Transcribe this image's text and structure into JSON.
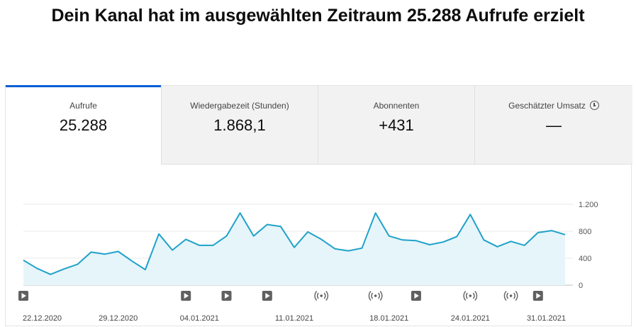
{
  "headline": "Dein Kanal hat im ausgewählten Zeitraum 25.288 Aufrufe erzielt",
  "tabs": [
    {
      "label": "Aufrufe",
      "value": "25.288"
    },
    {
      "label": "Wiedergabezeit (Stunden)",
      "value": "1.868,1"
    },
    {
      "label": "Abonnenten",
      "value": "+431"
    },
    {
      "label": "Geschätzter Umsatz",
      "value": "—",
      "icon": "clock-icon"
    }
  ],
  "colors": {
    "line": "#1fa2c9",
    "fill": "#e6f5fa",
    "accent": "#065fd4"
  },
  "chart_data": {
    "type": "area",
    "ylim": [
      0,
      1200
    ],
    "y_ticks": [
      0,
      400,
      800,
      1200
    ],
    "y_tick_labels": [
      "0",
      "400",
      "800",
      "1.200"
    ],
    "x_tick_labels": [
      "22.12.2020",
      "29.12.2020",
      "04.01.2021",
      "11.01.2021",
      "18.01.2021",
      "24.01.2021",
      "31.01.2021"
    ],
    "x_tick_index": [
      0,
      7,
      13,
      20,
      27,
      33,
      40
    ],
    "grid": true,
    "values": [
      370,
      250,
      160,
      240,
      310,
      490,
      460,
      500,
      360,
      230,
      760,
      520,
      680,
      590,
      590,
      730,
      1070,
      730,
      900,
      870,
      560,
      790,
      680,
      540,
      510,
      550,
      1070,
      730,
      670,
      660,
      600,
      640,
      720,
      1050,
      670,
      570,
      650,
      590,
      780,
      810,
      750
    ],
    "markers": [
      {
        "index": 0,
        "kind": "video"
      },
      {
        "index": 12,
        "kind": "video"
      },
      {
        "index": 15,
        "kind": "video"
      },
      {
        "index": 18,
        "kind": "video"
      },
      {
        "index": 22,
        "kind": "live"
      },
      {
        "index": 26,
        "kind": "live"
      },
      {
        "index": 29,
        "kind": "video"
      },
      {
        "index": 33,
        "kind": "live"
      },
      {
        "index": 36,
        "kind": "live"
      },
      {
        "index": 38,
        "kind": "video"
      }
    ]
  }
}
